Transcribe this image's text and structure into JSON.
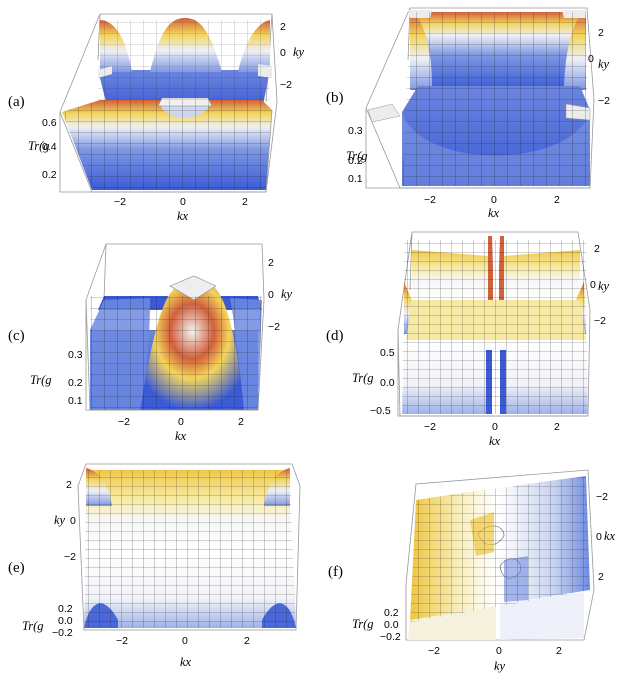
{
  "panels": [
    {
      "id": "a",
      "label": "(a)",
      "z_title": "Tr(g",
      "z_ticks": [
        "0.6",
        "0.4",
        "0.2"
      ],
      "x_title": "kx",
      "x_ticks": [
        "−2",
        "0",
        "2"
      ],
      "y_title": "ky",
      "y_ticks": [
        "2",
        "0",
        "−2"
      ],
      "colors": [
        "#3b5bd6",
        "#b9c8ec",
        "#f2f2f2",
        "#f3d55b",
        "#d2603a"
      ]
    },
    {
      "id": "b",
      "label": "(b)",
      "z_title": "Tr(g",
      "z_ticks": [
        "0.3",
        "0.2",
        "0.1"
      ],
      "x_title": "kx",
      "x_ticks": [
        "−2",
        "0",
        "2"
      ],
      "y_title": "ky",
      "y_ticks": [
        "2",
        "0",
        "−2"
      ],
      "colors": [
        "#3b5bd6",
        "#b9c8ec",
        "#f2f2f2",
        "#f3d55b",
        "#d2603a"
      ]
    },
    {
      "id": "c",
      "label": "(c)",
      "z_title": "Tr(g",
      "z_ticks": [
        "0.3",
        "0.2",
        "0.1"
      ],
      "x_title": "kx",
      "x_ticks": [
        "−2",
        "0",
        "2"
      ],
      "y_title": "ky",
      "y_ticks": [
        "2",
        "0",
        "−2"
      ],
      "colors": [
        "#3b5bd6",
        "#b9c8ec",
        "#f2f2f2",
        "#f3d55b",
        "#d2603a"
      ]
    },
    {
      "id": "d",
      "label": "(d)",
      "z_title": "Tr(g",
      "z_ticks": [
        "0.5",
        "0.0",
        "−0.5"
      ],
      "x_title": "kx",
      "x_ticks": [
        "−2",
        "0",
        "2"
      ],
      "y_title": "ky",
      "y_ticks": [
        "2",
        "0",
        "−2"
      ],
      "colors": [
        "#3b5bd6",
        "#b9c8ec",
        "#f2f2f2",
        "#f3d55b",
        "#d2603a"
      ]
    },
    {
      "id": "e",
      "label": "(e)",
      "z_title": "Tr(g",
      "z_ticks": [
        "0.2",
        "0.0",
        "−0.2"
      ],
      "x_title": "kx",
      "x_ticks": [
        "−2",
        "0",
        "2"
      ],
      "y_title": "ky",
      "y_ticks": [
        "2",
        "0",
        "−2"
      ],
      "colors": [
        "#3b5bd6",
        "#b9c8ec",
        "#f2f2f2",
        "#f3d55b",
        "#d2603a"
      ]
    },
    {
      "id": "f",
      "label": "(f)",
      "z_title": "Tr(g",
      "z_ticks": [
        "0.2",
        "0.0",
        "−0.2"
      ],
      "x_title": "ky",
      "x_ticks": [
        "−2",
        "0",
        "2"
      ],
      "y_title": "kx",
      "y_ticks": [
        "−2",
        "0",
        "2"
      ],
      "colors": [
        "#3b5bd6",
        "#b9c8ec",
        "#f2f2f2",
        "#f3d55b",
        "#d2603a"
      ]
    }
  ]
}
